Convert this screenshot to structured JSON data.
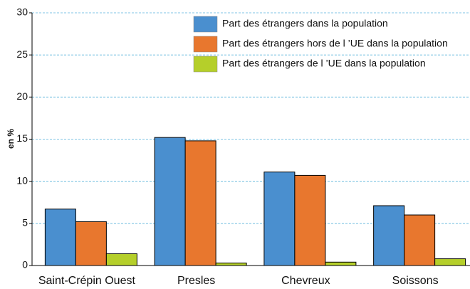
{
  "chart_data": {
    "type": "bar",
    "y_label": "en %",
    "categories": [
      "Saint-Crépin Ouest",
      "Presles",
      "Chevreux",
      "Soissons"
    ],
    "series": [
      {
        "name": "Part des étrangers dans la population",
        "color": "#4a8fcf",
        "values": [
          6.7,
          15.2,
          11.1,
          7.1
        ]
      },
      {
        "name": "Part des étrangers hors de l ’UE dans la population",
        "color": "#e8772e",
        "values": [
          5.2,
          14.8,
          10.7,
          6.0
        ]
      },
      {
        "name": "Part des étrangers de l ’UE dans la population",
        "color": "#b5cf2a",
        "values": [
          1.4,
          0.3,
          0.4,
          0.8
        ]
      }
    ],
    "ylim": [
      0,
      30
    ],
    "yticks": [
      0,
      5,
      10,
      15,
      20,
      25,
      30
    ],
    "grid": true,
    "legend": "top-right"
  }
}
